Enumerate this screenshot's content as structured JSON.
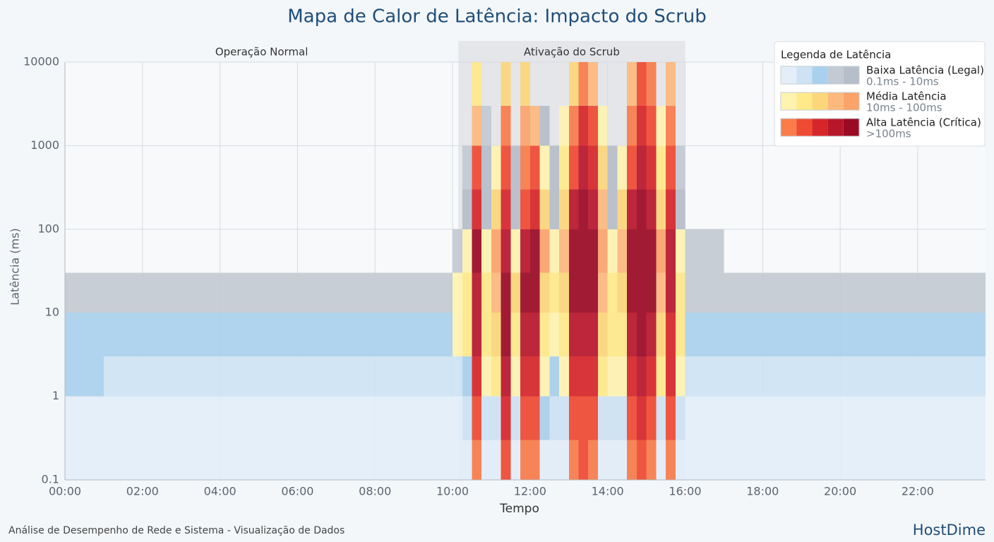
{
  "chart_data": {
    "type": "heatmap",
    "title": "Mapa de Calor de Latência: Impacto do Scrub",
    "xlabel": "Tempo",
    "ylabel": "Latência (ms)",
    "xlim": [
      0,
      23.75
    ],
    "ylim": [
      0.1,
      10000
    ],
    "log_y": true,
    "grid": true,
    "xticks": [
      {
        "value": 0,
        "label": "00:00"
      },
      {
        "value": 2,
        "label": "02:00"
      },
      {
        "value": 4,
        "label": "04:00"
      },
      {
        "value": 6,
        "label": "06:00"
      },
      {
        "value": 8,
        "label": "08:00"
      },
      {
        "value": 10,
        "label": "10:00"
      },
      {
        "value": 12,
        "label": "12:00"
      },
      {
        "value": 14,
        "label": "14:00"
      },
      {
        "value": 16,
        "label": "16:00"
      },
      {
        "value": 18,
        "label": "18:00"
      },
      {
        "value": 20,
        "label": "20:00"
      },
      {
        "value": 22,
        "label": "22:00"
      }
    ],
    "yticks": [
      0.1,
      1,
      10,
      100,
      1000,
      10000
    ],
    "regions": [
      {
        "label": "Operação Normal",
        "start": 0,
        "end": 10.15,
        "shaded": false,
        "color": "#e4e6ea"
      },
      {
        "label": "Ativação do Scrub",
        "start": 10.15,
        "end": 16,
        "shaded": true,
        "color": "#e4e6ea"
      }
    ],
    "x_bins": [
      0,
      1,
      2,
      3,
      4,
      5,
      6,
      7,
      8,
      9,
      10,
      10.25,
      10.5,
      10.75,
      11,
      11.25,
      11.5,
      11.75,
      12,
      12.25,
      12.5,
      12.75,
      13,
      13.25,
      13.5,
      13.75,
      14,
      14.25,
      14.5,
      14.75,
      15,
      15.25,
      15.5,
      15.75,
      16,
      17,
      18,
      19,
      20,
      21,
      22,
      23,
      23.75
    ],
    "y_bins": [
      0.1,
      0.3,
      1,
      3,
      10,
      30,
      100,
      300,
      1000,
      3000,
      10000
    ],
    "z": [
      [
        1,
        1,
        3,
        3,
        4,
        0,
        0,
        0,
        0,
        0
      ],
      [
        1,
        1,
        2,
        3,
        4,
        0,
        0,
        0,
        0,
        0
      ],
      [
        1,
        1,
        2,
        3,
        4,
        0,
        0,
        0,
        0,
        0
      ],
      [
        1,
        1,
        2,
        3,
        4,
        0,
        0,
        0,
        0,
        0
      ],
      [
        1,
        1,
        2,
        3,
        4,
        0,
        0,
        0,
        0,
        0
      ],
      [
        1,
        1,
        2,
        3,
        4,
        0,
        0,
        0,
        0,
        0
      ],
      [
        1,
        1,
        2,
        3,
        4,
        0,
        0,
        0,
        0,
        0
      ],
      [
        1,
        1,
        2,
        3,
        4,
        0,
        0,
        0,
        0,
        0
      ],
      [
        1,
        1,
        2,
        3,
        4,
        0,
        0,
        0,
        0,
        0
      ],
      [
        1,
        1,
        2,
        3,
        4,
        0,
        0,
        0,
        0,
        0
      ],
      [
        1,
        1,
        2,
        6,
        6,
        4,
        0,
        0,
        0,
        0
      ],
      [
        1,
        2,
        3,
        7,
        7,
        6,
        5,
        4,
        0,
        0
      ],
      [
        11,
        12,
        13,
        14,
        14,
        15,
        13,
        12,
        9,
        7
      ],
      [
        1,
        2,
        6,
        7,
        7,
        6,
        5,
        5,
        4,
        0
      ],
      [
        1,
        2,
        7,
        8,
        9,
        10,
        8,
        6,
        0,
        0
      ],
      [
        12,
        13,
        14,
        15,
        15,
        14,
        13,
        12,
        11,
        8
      ],
      [
        1,
        2,
        6,
        7,
        8,
        6,
        5,
        5,
        0,
        0
      ],
      [
        11,
        12,
        13,
        14,
        15,
        14,
        12,
        11,
        10,
        8
      ],
      [
        11,
        12,
        13,
        14,
        15,
        15,
        13,
        12,
        9,
        0
      ],
      [
        1,
        3,
        6,
        7,
        8,
        10,
        8,
        6,
        5,
        0
      ],
      [
        1,
        2,
        3,
        6,
        7,
        6,
        5,
        5,
        0,
        0
      ],
      [
        1,
        2,
        6,
        7,
        8,
        9,
        8,
        7,
        6,
        0
      ],
      [
        11,
        12,
        13,
        14,
        15,
        15,
        14,
        12,
        11,
        8
      ],
      [
        12,
        12,
        13,
        14,
        15,
        15,
        15,
        14,
        13,
        11
      ],
      [
        11,
        12,
        13,
        14,
        15,
        15,
        14,
        13,
        12,
        9
      ],
      [
        1,
        2,
        7,
        8,
        9,
        10,
        9,
        8,
        6,
        0
      ],
      [
        1,
        2,
        6,
        7,
        7,
        6,
        5,
        5,
        0,
        0
      ],
      [
        1,
        2,
        6,
        7,
        8,
        9,
        8,
        6,
        0,
        0
      ],
      [
        11,
        12,
        13,
        14,
        15,
        15,
        14,
        12,
        11,
        9
      ],
      [
        12,
        13,
        14,
        15,
        15,
        15,
        15,
        14,
        13,
        12
      ],
      [
        11,
        12,
        13,
        14,
        15,
        15,
        14,
        13,
        12,
        11
      ],
      [
        1,
        2,
        7,
        8,
        9,
        10,
        8,
        7,
        6,
        0
      ],
      [
        11,
        12,
        13,
        13,
        14,
        14,
        13,
        12,
        11,
        9
      ],
      [
        1,
        2,
        6,
        7,
        7,
        6,
        5,
        4,
        0,
        0
      ],
      [
        1,
        1,
        2,
        3,
        4,
        4,
        0,
        0,
        0,
        0
      ],
      [
        1,
        1,
        2,
        3,
        4,
        0,
        0,
        0,
        0,
        0
      ],
      [
        1,
        1,
        2,
        3,
        4,
        0,
        0,
        0,
        0,
        0
      ],
      [
        1,
        1,
        2,
        3,
        4,
        0,
        0,
        0,
        0,
        0
      ],
      [
        1,
        1,
        2,
        3,
        4,
        0,
        0,
        0,
        0,
        0
      ],
      [
        1,
        1,
        2,
        3,
        4,
        0,
        0,
        0,
        0,
        0
      ],
      [
        1,
        1,
        2,
        3,
        4,
        0,
        0,
        0,
        0,
        0
      ],
      [
        1,
        1,
        2,
        3,
        4,
        0,
        0,
        0,
        0,
        0
      ]
    ],
    "legend": {
      "title": "Legenda de Latência",
      "position": "top-right",
      "groups": [
        {
          "name": "Baixa Latência (Legal)",
          "range": "0.1ms - 10ms",
          "colors": [
            "#e3eef8",
            "#cde3f3",
            "#a9d0ec",
            "#c3cad3",
            "#b6bec9"
          ]
        },
        {
          "name": "Média Latência",
          "range": "10ms - 100ms",
          "colors": [
            "#fff3b0",
            "#ffe98a",
            "#fcd77a",
            "#fdb97d",
            "#fca36a"
          ]
        },
        {
          "name": "Alta Latência (Crítica)",
          "range": ">100ms",
          "colors": [
            "#f97c4a",
            "#ef4a32",
            "#d7262a",
            "#b8172b",
            "#9b0a25"
          ]
        }
      ]
    }
  },
  "footer": "Análise de Desempenho de Rede e Sistema - Visualização de Dados",
  "brand": "HostDime"
}
